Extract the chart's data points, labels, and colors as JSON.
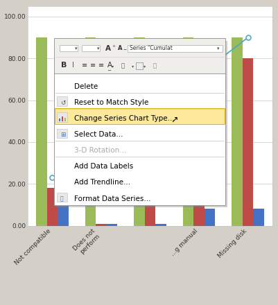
{
  "categories": [
    "Not compatible",
    "Does not\nperform",
    "",
    "...g manual",
    "Missing disk"
  ],
  "bar_values_blue": [
    23,
    1,
    1,
    8,
    8
  ],
  "bar_values_red": [
    18,
    1,
    38,
    62,
    80
  ],
  "bar_values_green": [
    90,
    90,
    90,
    90,
    90
  ],
  "line_values": [
    23,
    27,
    50,
    72,
    90
  ],
  "ytick_labels": [
    "0.00",
    "20.00",
    "40.00",
    "60.00",
    "80.00",
    "100.00"
  ],
  "ytick_vals": [
    0,
    20,
    40,
    60,
    80,
    100
  ],
  "bar_color_blue": "#4472c4",
  "bar_color_red": "#be4b48",
  "bar_color_green": "#9bbb59",
  "line_color": "#4bacc6",
  "chart_bg": "#ffffff",
  "grid_color": "#c8c8c8",
  "fig_bg": "#d4d0c8",
  "menu_items": [
    "Delete",
    "Reset to Match Style",
    "Change Series Chart Type...",
    "Select Data...",
    "3-D Rotation...",
    "Add Data Labels",
    "Add Trendline...",
    "Format Data Series..."
  ],
  "menu_disabled": [
    4
  ],
  "menu_highlight_index": 2,
  "menu_icons": {
    "1": "reset",
    "2": "chart",
    "3": "data",
    "7": "format"
  },
  "toolbar_text": "Series \"Cumulat",
  "separator_after": [
    0,
    1,
    3,
    4
  ]
}
